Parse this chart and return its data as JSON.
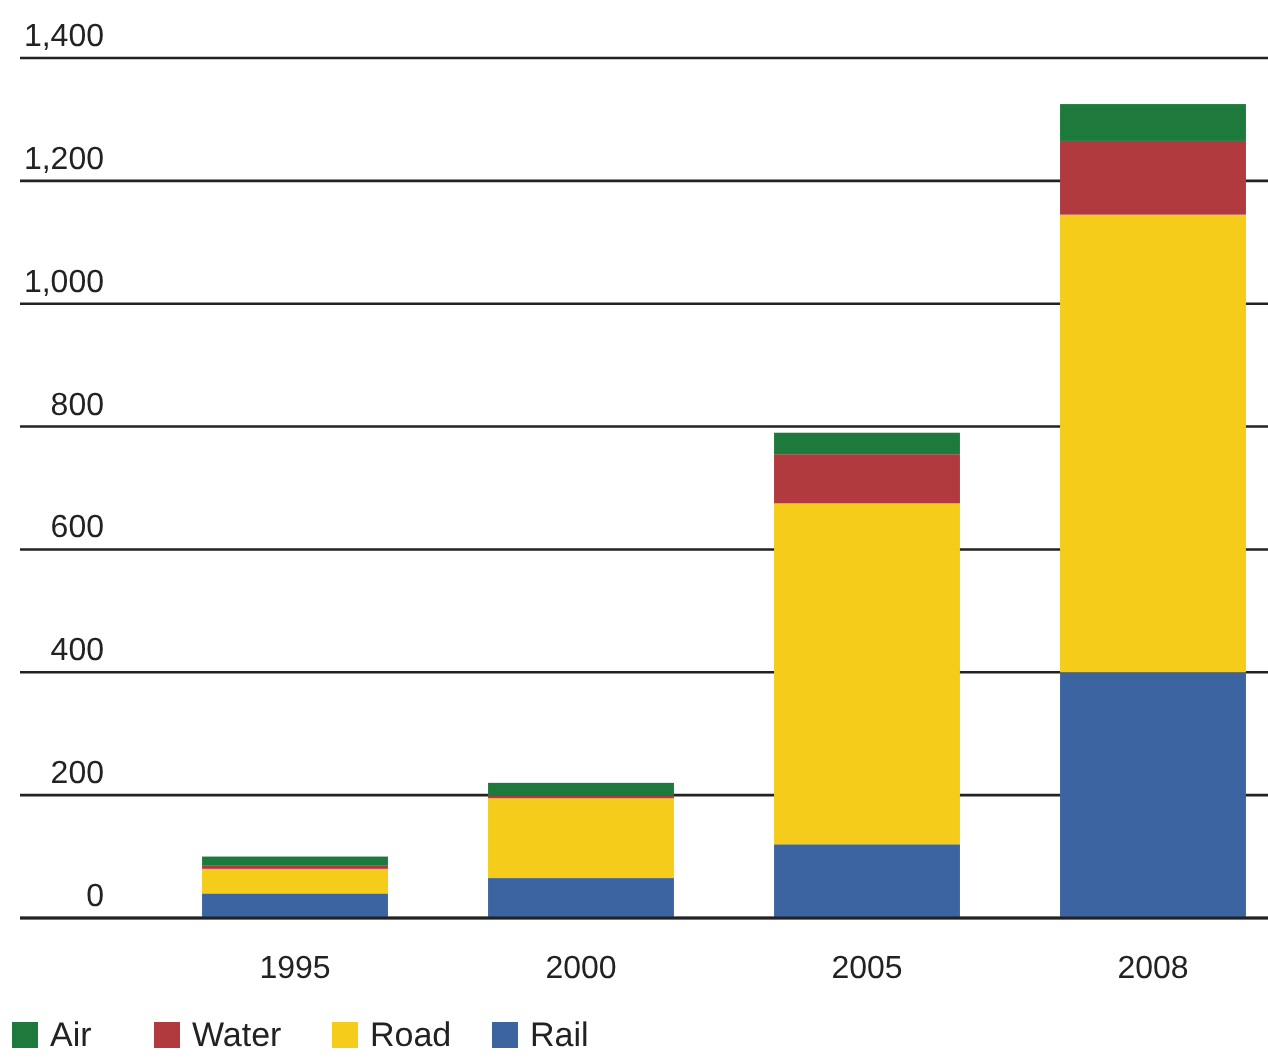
{
  "chart_data": {
    "type": "bar",
    "stacked": true,
    "categories": [
      "1995",
      "2000",
      "2005",
      "2008"
    ],
    "series": [
      {
        "name": "Rail",
        "color": "#3c64a0",
        "values": [
          40,
          65,
          120,
          400
        ]
      },
      {
        "name": "Road",
        "color": "#f5cc1a",
        "values": [
          40,
          130,
          555,
          745
        ]
      },
      {
        "name": "Water",
        "color": "#b03a3e",
        "values": [
          5,
          5,
          80,
          120
        ]
      },
      {
        "name": "Air",
        "color": "#1e7a3c",
        "values": [
          15,
          20,
          35,
          60
        ]
      }
    ],
    "ylim": [
      0,
      1400
    ],
    "yticks": [
      0,
      200,
      400,
      600,
      800,
      {
        "value": 1000,
        "label": "1,000"
      },
      {
        "value": 1200,
        "label": "1,200"
      },
      {
        "value": 1400,
        "label": "1,400"
      }
    ],
    "grid": "y",
    "legend": "bottom left"
  }
}
